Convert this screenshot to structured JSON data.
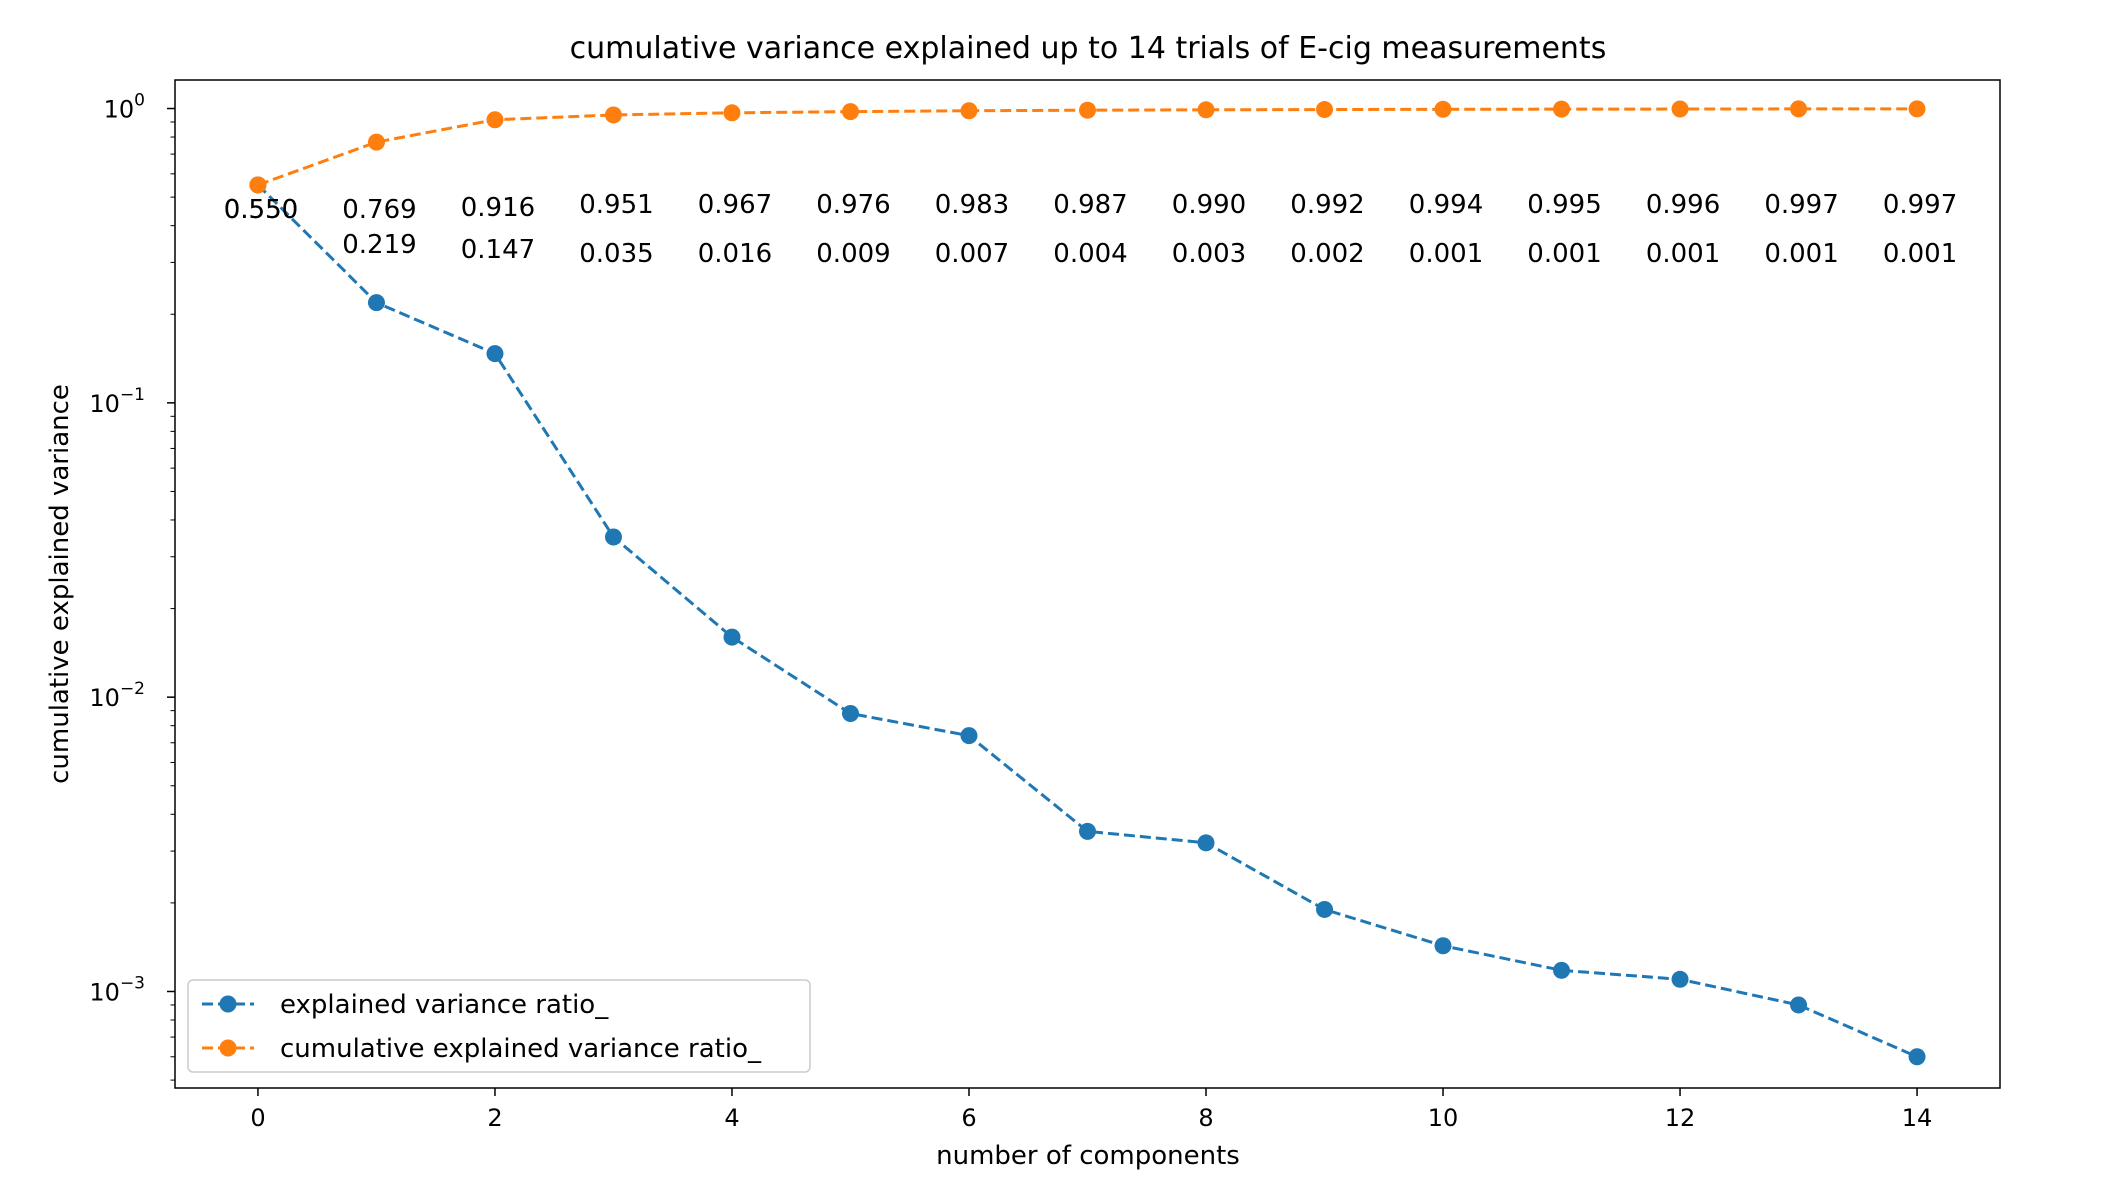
{
  "chart_data": {
    "type": "line",
    "title": "cumulative variance explained up to 14 trials of E-cig measurements",
    "xlabel": "number of components",
    "ylabel": "cumulative explained variance",
    "yscale": "log",
    "xlim": [
      -0.7,
      14.7
    ],
    "ylim": [
      0.00047,
      1.25
    ],
    "grid": false,
    "legend_position": "lower-left",
    "x": [
      0,
      1,
      2,
      3,
      4,
      5,
      6,
      7,
      8,
      9,
      10,
      11,
      12,
      13,
      14
    ],
    "x_ticks": [
      {
        "value": 0,
        "label": "0"
      },
      {
        "value": 2,
        "label": "2"
      },
      {
        "value": 4,
        "label": "4"
      },
      {
        "value": 6,
        "label": "6"
      },
      {
        "value": 8,
        "label": "8"
      },
      {
        "value": 10,
        "label": "10"
      },
      {
        "value": 12,
        "label": "12"
      },
      {
        "value": 14,
        "label": "14"
      }
    ],
    "y_ticks": [
      {
        "value": 1,
        "base": "10",
        "exp": "0"
      },
      {
        "value": 0.1,
        "base": "10",
        "exp": "−1"
      },
      {
        "value": 0.01,
        "base": "10",
        "exp": "−2"
      },
      {
        "value": 0.001,
        "base": "10",
        "exp": "−3"
      }
    ],
    "series": [
      {
        "name": "explained variance ratio_",
        "color": "#1f77b4",
        "values": [
          0.55,
          0.219,
          0.147,
          0.035,
          0.016,
          0.0088,
          0.0074,
          0.0035,
          0.0032,
          0.0019,
          0.00143,
          0.00118,
          0.0011,
          0.0009,
          0.0006
        ],
        "labels": [
          "0.550",
          "0.219",
          "0.147",
          "0.035",
          "0.016",
          "0.009",
          "0.007",
          "0.004",
          "0.003",
          "0.002",
          "0.001",
          "0.001",
          "0.001",
          "0.001",
          "0.001"
        ]
      },
      {
        "name": "cumulative explained variance ratio_",
        "color": "#ff7f0e",
        "values": [
          0.55,
          0.769,
          0.916,
          0.951,
          0.967,
          0.976,
          0.983,
          0.987,
          0.99,
          0.992,
          0.994,
          0.995,
          0.996,
          0.997,
          0.997
        ],
        "labels": [
          "0.550",
          "0.769",
          "0.916",
          "0.951",
          "0.967",
          "0.976",
          "0.983",
          "0.987",
          "0.990",
          "0.992",
          "0.994",
          "0.995",
          "0.996",
          "0.997",
          "0.997"
        ]
      }
    ]
  }
}
